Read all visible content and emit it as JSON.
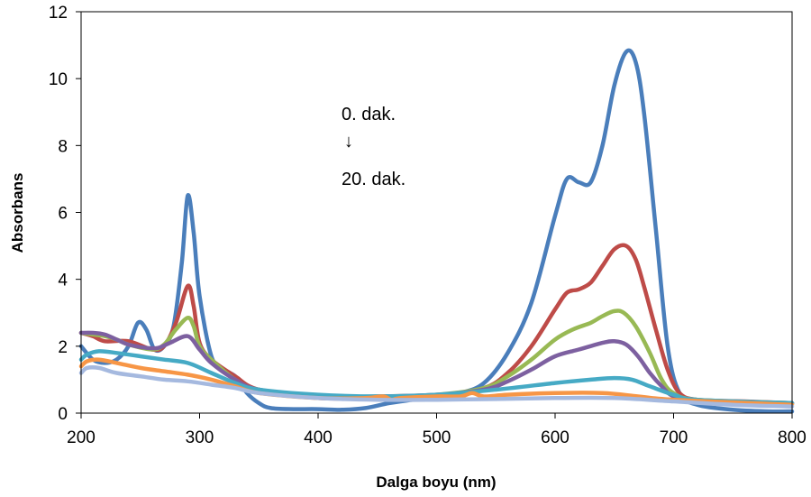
{
  "chart_data": {
    "type": "line",
    "title": "",
    "xlabel": "Dalga boyu (nm)",
    "ylabel": "Absorbans",
    "xlim": [
      200,
      800
    ],
    "ylim": [
      0,
      12
    ],
    "xticks": [
      200,
      300,
      400,
      500,
      600,
      700,
      800
    ],
    "yticks": [
      0,
      2,
      4,
      6,
      8,
      10,
      12
    ],
    "grid": false,
    "legend": "none",
    "annotations": {
      "start": "0. dak.",
      "arrow": "↓",
      "end": "20. dak."
    },
    "series": [
      {
        "color": "#4A7EBB",
        "points": [
          [
            200,
            2.0
          ],
          [
            210,
            1.6
          ],
          [
            220,
            1.5
          ],
          [
            230,
            1.6
          ],
          [
            240,
            2.0
          ],
          [
            248,
            2.7
          ],
          [
            255,
            2.5
          ],
          [
            262,
            1.9
          ],
          [
            270,
            2.0
          ],
          [
            278,
            2.6
          ],
          [
            285,
            4.5
          ],
          [
            290,
            6.5
          ],
          [
            295,
            5.4
          ],
          [
            300,
            3.5
          ],
          [
            310,
            1.7
          ],
          [
            320,
            1.3
          ],
          [
            330,
            1.1
          ],
          [
            340,
            0.6
          ],
          [
            350,
            0.3
          ],
          [
            360,
            0.15
          ],
          [
            380,
            0.12
          ],
          [
            400,
            0.12
          ],
          [
            420,
            0.1
          ],
          [
            440,
            0.15
          ],
          [
            460,
            0.3
          ],
          [
            480,
            0.4
          ],
          [
            500,
            0.5
          ],
          [
            520,
            0.6
          ],
          [
            540,
            0.9
          ],
          [
            560,
            1.8
          ],
          [
            580,
            3.3
          ],
          [
            600,
            5.9
          ],
          [
            610,
            7.0
          ],
          [
            620,
            6.9
          ],
          [
            630,
            6.9
          ],
          [
            640,
            8.0
          ],
          [
            650,
            9.8
          ],
          [
            660,
            10.8
          ],
          [
            668,
            10.5
          ],
          [
            675,
            9.0
          ],
          [
            685,
            5.5
          ],
          [
            695,
            2.0
          ],
          [
            705,
            0.6
          ],
          [
            720,
            0.25
          ],
          [
            750,
            0.1
          ],
          [
            780,
            0.05
          ],
          [
            800,
            0.05
          ]
        ]
      },
      {
        "color": "#BE4B48",
        "points": [
          [
            200,
            2.4
          ],
          [
            210,
            2.3
          ],
          [
            220,
            2.15
          ],
          [
            240,
            2.15
          ],
          [
            260,
            1.9
          ],
          [
            270,
            2.0
          ],
          [
            280,
            2.7
          ],
          [
            290,
            3.8
          ],
          [
            295,
            3.2
          ],
          [
            300,
            2.1
          ],
          [
            310,
            1.6
          ],
          [
            330,
            1.1
          ],
          [
            350,
            0.7
          ],
          [
            400,
            0.45
          ],
          [
            450,
            0.45
          ],
          [
            500,
            0.5
          ],
          [
            540,
            0.75
          ],
          [
            560,
            1.2
          ],
          [
            580,
            2.0
          ],
          [
            600,
            3.1
          ],
          [
            610,
            3.6
          ],
          [
            620,
            3.7
          ],
          [
            630,
            3.9
          ],
          [
            640,
            4.4
          ],
          [
            650,
            4.9
          ],
          [
            660,
            5.0
          ],
          [
            668,
            4.6
          ],
          [
            675,
            3.8
          ],
          [
            685,
            2.5
          ],
          [
            695,
            1.3
          ],
          [
            705,
            0.6
          ],
          [
            720,
            0.4
          ],
          [
            760,
            0.35
          ],
          [
            800,
            0.3
          ]
        ]
      },
      {
        "color": "#98B954",
        "points": [
          [
            200,
            2.4
          ],
          [
            210,
            2.35
          ],
          [
            220,
            2.3
          ],
          [
            230,
            2.2
          ],
          [
            240,
            2.05
          ],
          [
            260,
            1.9
          ],
          [
            270,
            2.05
          ],
          [
            280,
            2.5
          ],
          [
            290,
            2.85
          ],
          [
            295,
            2.6
          ],
          [
            300,
            2.0
          ],
          [
            310,
            1.6
          ],
          [
            330,
            1.0
          ],
          [
            350,
            0.7
          ],
          [
            400,
            0.5
          ],
          [
            450,
            0.5
          ],
          [
            500,
            0.55
          ],
          [
            540,
            0.75
          ],
          [
            560,
            1.1
          ],
          [
            580,
            1.6
          ],
          [
            600,
            2.2
          ],
          [
            615,
            2.5
          ],
          [
            630,
            2.7
          ],
          [
            640,
            2.9
          ],
          [
            650,
            3.05
          ],
          [
            658,
            3.0
          ],
          [
            668,
            2.6
          ],
          [
            680,
            1.8
          ],
          [
            690,
            1.0
          ],
          [
            700,
            0.6
          ],
          [
            720,
            0.4
          ],
          [
            800,
            0.3
          ]
        ]
      },
      {
        "color": "#7D60A0",
        "points": [
          [
            200,
            2.4
          ],
          [
            210,
            2.4
          ],
          [
            220,
            2.35
          ],
          [
            230,
            2.2
          ],
          [
            240,
            2.05
          ],
          [
            255,
            1.95
          ],
          [
            265,
            1.95
          ],
          [
            275,
            2.1
          ],
          [
            290,
            2.3
          ],
          [
            300,
            1.9
          ],
          [
            310,
            1.5
          ],
          [
            330,
            1.0
          ],
          [
            350,
            0.7
          ],
          [
            400,
            0.5
          ],
          [
            450,
            0.5
          ],
          [
            500,
            0.55
          ],
          [
            540,
            0.7
          ],
          [
            560,
            0.95
          ],
          [
            580,
            1.3
          ],
          [
            600,
            1.7
          ],
          [
            620,
            1.9
          ],
          [
            640,
            2.1
          ],
          [
            650,
            2.15
          ],
          [
            660,
            2.05
          ],
          [
            670,
            1.7
          ],
          [
            680,
            1.2
          ],
          [
            690,
            0.8
          ],
          [
            700,
            0.5
          ],
          [
            720,
            0.35
          ],
          [
            800,
            0.3
          ]
        ]
      },
      {
        "color": "#46AAC5",
        "points": [
          [
            200,
            1.6
          ],
          [
            205,
            1.75
          ],
          [
            215,
            1.85
          ],
          [
            230,
            1.8
          ],
          [
            250,
            1.7
          ],
          [
            270,
            1.6
          ],
          [
            290,
            1.5
          ],
          [
            310,
            1.2
          ],
          [
            330,
            0.9
          ],
          [
            350,
            0.7
          ],
          [
            400,
            0.55
          ],
          [
            450,
            0.5
          ],
          [
            500,
            0.55
          ],
          [
            550,
            0.7
          ],
          [
            600,
            0.9
          ],
          [
            630,
            1.0
          ],
          [
            650,
            1.05
          ],
          [
            665,
            1.0
          ],
          [
            680,
            0.8
          ],
          [
            700,
            0.55
          ],
          [
            720,
            0.4
          ],
          [
            800,
            0.3
          ]
        ]
      },
      {
        "color": "#F79646",
        "points": [
          [
            200,
            1.4
          ],
          [
            205,
            1.55
          ],
          [
            215,
            1.6
          ],
          [
            230,
            1.5
          ],
          [
            250,
            1.35
          ],
          [
            270,
            1.25
          ],
          [
            290,
            1.15
          ],
          [
            310,
            1.0
          ],
          [
            330,
            0.8
          ],
          [
            350,
            0.6
          ],
          [
            400,
            0.45
          ],
          [
            440,
            0.45
          ],
          [
            455,
            0.5
          ],
          [
            462,
            0.4
          ],
          [
            470,
            0.45
          ],
          [
            500,
            0.5
          ],
          [
            520,
            0.5
          ],
          [
            530,
            0.6
          ],
          [
            540,
            0.5
          ],
          [
            560,
            0.55
          ],
          [
            600,
            0.6
          ],
          [
            640,
            0.6
          ],
          [
            670,
            0.5
          ],
          [
            700,
            0.4
          ],
          [
            800,
            0.25
          ]
        ]
      },
      {
        "color": "#A5B9DF",
        "points": [
          [
            200,
            1.2
          ],
          [
            205,
            1.35
          ],
          [
            215,
            1.35
          ],
          [
            230,
            1.2
          ],
          [
            250,
            1.1
          ],
          [
            270,
            1.0
          ],
          [
            290,
            0.95
          ],
          [
            310,
            0.85
          ],
          [
            330,
            0.75
          ],
          [
            350,
            0.6
          ],
          [
            400,
            0.45
          ],
          [
            450,
            0.4
          ],
          [
            500,
            0.4
          ],
          [
            550,
            0.42
          ],
          [
            600,
            0.45
          ],
          [
            650,
            0.45
          ],
          [
            700,
            0.35
          ],
          [
            750,
            0.25
          ],
          [
            800,
            0.2
          ]
        ]
      }
    ]
  }
}
